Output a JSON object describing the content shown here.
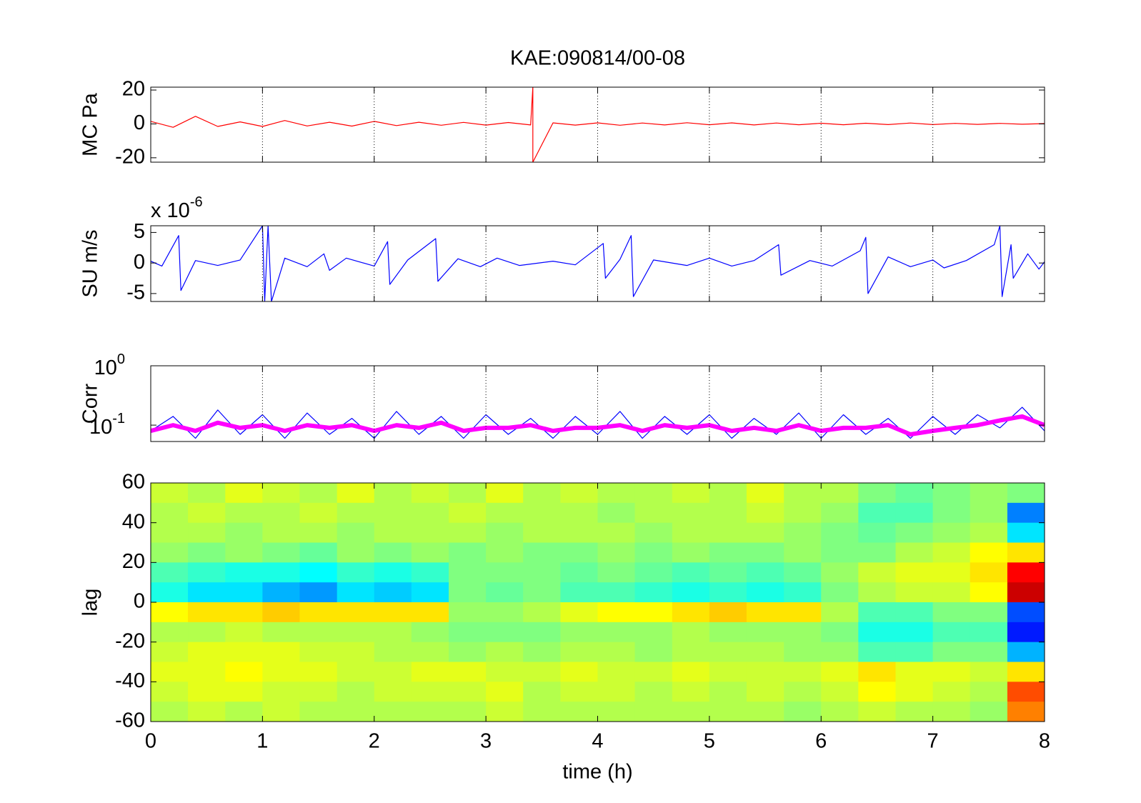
{
  "chart_data": [
    {
      "type": "line",
      "title": "KAE:090814/00-08",
      "ylabel": "MC Pa",
      "color": "#ff0000",
      "xlim": [
        0,
        8
      ],
      "xticks": [
        0,
        1,
        2,
        3,
        4,
        5,
        6,
        7,
        8
      ],
      "grid": true,
      "xtick_labels": false,
      "ylim": [
        -22.6,
        21.7
      ],
      "yticks": [
        -20,
        0,
        20
      ],
      "x": [
        0,
        0.2,
        0.4,
        0.6,
        0.8,
        1.0,
        1.2,
        1.4,
        1.6,
        1.8,
        2.0,
        2.2,
        2.4,
        2.6,
        2.8,
        3.0,
        3.2,
        3.4,
        3.42,
        3.42,
        3.6,
        3.8,
        4.0,
        4.2,
        4.4,
        4.6,
        4.8,
        5.0,
        5.2,
        5.4,
        5.6,
        5.8,
        6.0,
        6.2,
        6.4,
        6.6,
        6.8,
        7.0,
        7.2,
        7.4,
        7.6,
        7.8,
        8.0
      ],
      "values": [
        1.5,
        -2,
        4.5,
        -1.5,
        1.2,
        -1.5,
        2,
        -1.2,
        1,
        -1.3,
        1.5,
        -1,
        1,
        -0.8,
        0.9,
        -0.7,
        0.8,
        -0.6,
        21.7,
        -22.6,
        0.6,
        -0.7,
        0.6,
        -0.8,
        0.5,
        -0.6,
        0.7,
        -0.5,
        0.6,
        -0.6,
        0.5,
        -0.5,
        0.4,
        -0.5,
        0.4,
        -0.4,
        0.5,
        -0.4,
        0.3,
        -0.3,
        0.3,
        -0.2,
        0.2
      ]
    },
    {
      "type": "line",
      "ylabel": "SU m/s",
      "multiplier": {
        "label": "x 10",
        "exponent": "-6"
      },
      "color": "#0000ff",
      "xlim": [
        0,
        8
      ],
      "xticks": [
        0,
        1,
        2,
        3,
        4,
        5,
        6,
        7,
        8
      ],
      "grid": true,
      "xtick_labels": false,
      "ylim": [
        -6.3,
        6.1
      ],
      "yticks": [
        -5,
        0,
        5
      ],
      "x": [
        0,
        0.1,
        0.25,
        0.27,
        0.4,
        0.6,
        0.8,
        1.0,
        1.02,
        1.05,
        1.08,
        1.2,
        1.4,
        1.55,
        1.6,
        1.75,
        2.0,
        2.12,
        2.14,
        2.3,
        2.55,
        2.57,
        2.75,
        2.95,
        3.1,
        3.3,
        3.6,
        3.8,
        4.05,
        4.07,
        4.2,
        4.3,
        4.32,
        4.5,
        4.8,
        5.0,
        5.2,
        5.4,
        5.62,
        5.64,
        5.9,
        6.1,
        6.35,
        6.4,
        6.42,
        6.6,
        6.8,
        7.0,
        7.1,
        7.3,
        7.55,
        7.6,
        7.62,
        7.7,
        7.72,
        7.85,
        7.95,
        8.0
      ],
      "values": [
        0.3,
        -0.5,
        4.5,
        -4.5,
        0.4,
        -0.4,
        0.5,
        6.1,
        -6.3,
        6.1,
        -6.3,
        0.8,
        -0.6,
        1.5,
        -1.2,
        0.8,
        -0.5,
        3.5,
        -3.5,
        0.5,
        4,
        -3,
        0.7,
        -0.6,
        0.8,
        -0.4,
        0.3,
        -0.3,
        3.2,
        -2.5,
        0.6,
        4.5,
        -5.5,
        0.5,
        -0.4,
        0.8,
        -0.5,
        0.4,
        3,
        -2,
        0.4,
        -0.5,
        2,
        4.2,
        -5,
        1,
        -0.6,
        0.5,
        -0.8,
        0.4,
        3,
        6.1,
        -5.5,
        3,
        -2.5,
        1.5,
        -1,
        0.2
      ]
    },
    {
      "type": "line",
      "ylabel": "Corr",
      "log": true,
      "xlim": [
        0,
        8
      ],
      "xticks": [
        0,
        1,
        2,
        3,
        4,
        5,
        6,
        7,
        8
      ],
      "grid": true,
      "xtick_labels": false,
      "ylim": [
        0.053,
        1
      ],
      "yticks": [
        {
          "value": 0.1,
          "label": "10",
          "exponent": "-1"
        },
        {
          "value": 1,
          "label": "10",
          "exponent": "0"
        }
      ],
      "x": [
        0,
        0.2,
        0.4,
        0.6,
        0.8,
        1.0,
        1.2,
        1.4,
        1.6,
        1.8,
        2.0,
        2.2,
        2.4,
        2.6,
        2.8,
        3.0,
        3.2,
        3.4,
        3.6,
        3.8,
        4.0,
        4.2,
        4.4,
        4.6,
        4.8,
        5.0,
        5.2,
        5.4,
        5.6,
        5.8,
        6.0,
        6.2,
        6.4,
        6.6,
        6.8,
        7.0,
        7.2,
        7.4,
        7.6,
        7.8,
        8.0
      ],
      "series": [
        {
          "color": "#0000ff",
          "values": [
            0.08,
            0.14,
            0.06,
            0.18,
            0.07,
            0.15,
            0.06,
            0.16,
            0.07,
            0.13,
            0.06,
            0.17,
            0.07,
            0.14,
            0.06,
            0.15,
            0.07,
            0.13,
            0.06,
            0.14,
            0.07,
            0.17,
            0.06,
            0.14,
            0.07,
            0.15,
            0.06,
            0.13,
            0.07,
            0.16,
            0.06,
            0.15,
            0.07,
            0.13,
            0.06,
            0.14,
            0.07,
            0.15,
            0.09,
            0.2,
            0.08
          ]
        },
        {
          "color": "#ff00ff",
          "values": [
            0.08,
            0.1,
            0.08,
            0.11,
            0.09,
            0.1,
            0.08,
            0.1,
            0.09,
            0.1,
            0.08,
            0.1,
            0.09,
            0.11,
            0.08,
            0.09,
            0.09,
            0.1,
            0.08,
            0.09,
            0.09,
            0.1,
            0.08,
            0.1,
            0.09,
            0.1,
            0.08,
            0.09,
            0.08,
            0.1,
            0.08,
            0.09,
            0.09,
            0.1,
            0.07,
            0.08,
            0.09,
            0.1,
            0.12,
            0.14,
            0.1
          ]
        }
      ]
    },
    {
      "type": "heatmap",
      "ylabel": "lag",
      "xlabel": "time (h)",
      "colormap": "jet",
      "clim": [
        -1,
        1
      ],
      "xlim": [
        0,
        8
      ],
      "xticks": [
        0,
        1,
        2,
        3,
        4,
        5,
        6,
        7,
        8
      ],
      "grid": false,
      "xtick_labels": true,
      "ylim": [
        -60,
        60
      ],
      "yticks": [
        -60,
        -40,
        -20,
        0,
        20,
        40,
        60
      ],
      "x": [
        0,
        0.333,
        0.667,
        1,
        1.333,
        1.667,
        2,
        2.333,
        2.667,
        3,
        3.333,
        3.667,
        4,
        4.333,
        4.667,
        5,
        5.333,
        5.667,
        6,
        6.333,
        6.667,
        7,
        7.333,
        7.667,
        8
      ],
      "y": [
        60,
        50,
        40,
        30,
        20,
        10,
        0,
        -10,
        -20,
        -30,
        -40,
        -50,
        -60
      ],
      "values": [
        [
          0.15,
          0.1,
          0.2,
          0.15,
          0.1,
          0.2,
          0.1,
          0.15,
          0.1,
          0.2,
          0.1,
          0.15,
          0.1,
          0.1,
          0.15,
          0.1,
          0.2,
          0.1,
          0.1,
          0,
          -0.05,
          0,
          0.05,
          0
        ],
        [
          0.1,
          0.15,
          0.1,
          0.1,
          0.15,
          0.1,
          0.1,
          0.1,
          0.15,
          0.1,
          0.1,
          0.1,
          0.05,
          0.1,
          0.1,
          0.1,
          0.15,
          0.1,
          0.05,
          -0.1,
          -0.1,
          0,
          0.05,
          -0.5
        ],
        [
          0.1,
          0.1,
          0.05,
          0.1,
          0.1,
          0.05,
          0.1,
          0.1,
          0.1,
          0.05,
          0.1,
          0.1,
          0.1,
          0.05,
          0.1,
          0.1,
          0.1,
          0.05,
          0,
          -0.05,
          0,
          0.05,
          0.1,
          -0.3
        ],
        [
          0.05,
          0,
          0.05,
          0,
          -0.05,
          0.05,
          0,
          0.05,
          0,
          0.05,
          0,
          0,
          0.05,
          0,
          0.05,
          0,
          0,
          0.05,
          0,
          0,
          0.1,
          0.15,
          0.25,
          0.3
        ],
        [
          -0.1,
          -0.15,
          -0.2,
          -0.2,
          -0.25,
          -0.15,
          -0.2,
          -0.15,
          0,
          0,
          0,
          -0.05,
          0,
          -0.05,
          -0.1,
          -0.05,
          -0.1,
          -0.05,
          0.05,
          0.15,
          0.2,
          0.2,
          0.3,
          0.75
        ],
        [
          -0.2,
          -0.3,
          -0.3,
          -0.4,
          -0.45,
          -0.3,
          -0.35,
          -0.3,
          0,
          -0.05,
          0,
          -0.1,
          -0.1,
          -0.15,
          -0.2,
          -0.15,
          -0.2,
          -0.15,
          0,
          0.1,
          0.15,
          0.15,
          0.25,
          0.85
        ],
        [
          0.25,
          0.3,
          0.3,
          0.35,
          0.3,
          0.3,
          0.3,
          0.3,
          0.05,
          0.05,
          0.1,
          0.2,
          0.25,
          0.25,
          0.3,
          0.35,
          0.3,
          0.3,
          0.1,
          -0.1,
          -0.1,
          0,
          0,
          -0.6
        ],
        [
          0.1,
          0.1,
          0.15,
          0.1,
          0.1,
          0.1,
          0.1,
          0.05,
          0,
          0,
          0,
          0.05,
          0.05,
          0.05,
          0.1,
          0.05,
          0.05,
          0.05,
          0,
          -0.2,
          -0.2,
          -0.1,
          -0.1,
          -0.7
        ],
        [
          0.15,
          0.2,
          0.2,
          0.2,
          0.15,
          0.15,
          0.1,
          0.1,
          0.05,
          0.1,
          0.05,
          0.1,
          0.1,
          0.05,
          0.1,
          0.1,
          0.1,
          0.05,
          0.05,
          -0.1,
          -0.1,
          0,
          0,
          -0.4
        ],
        [
          0.2,
          0.2,
          0.25,
          0.2,
          0.2,
          0.15,
          0.15,
          0.2,
          0.2,
          0.15,
          0.15,
          0.2,
          0.15,
          0.15,
          0.2,
          0.15,
          0.15,
          0.15,
          0.2,
          0.3,
          0.2,
          0.2,
          0.15,
          0.3
        ],
        [
          0.15,
          0.2,
          0.2,
          0.15,
          0.15,
          0.1,
          0.15,
          0.15,
          0.15,
          0.2,
          0.1,
          0.15,
          0.15,
          0.1,
          0.15,
          0.1,
          0.15,
          0.1,
          0.15,
          0.25,
          0.2,
          0.15,
          0.1,
          0.6
        ],
        [
          0.1,
          0.15,
          0.1,
          0.15,
          0.1,
          0.1,
          0.1,
          0.1,
          0.1,
          0.15,
          0.1,
          0.1,
          0.1,
          0.1,
          0.1,
          0.1,
          0.1,
          0.05,
          0.1,
          0.15,
          0.1,
          0.1,
          0.05,
          0.5
        ]
      ]
    }
  ]
}
